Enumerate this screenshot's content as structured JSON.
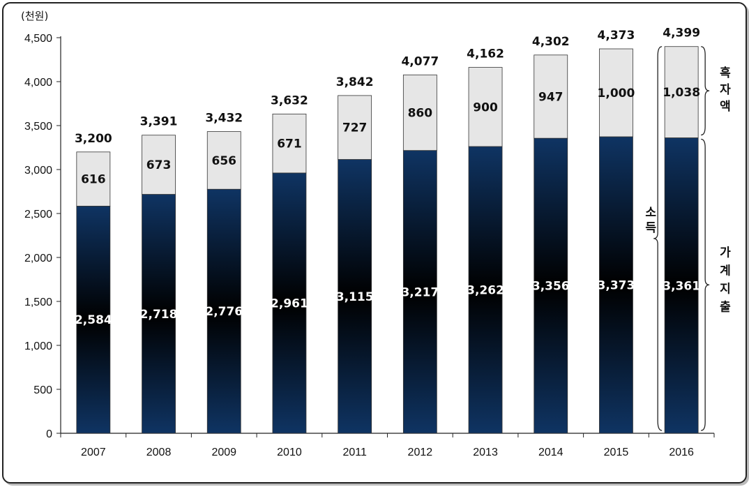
{
  "unit_label": "(천원)",
  "annotations": {
    "surplus": [
      "흑",
      "자",
      "액"
    ],
    "expenditure": [
      "가",
      "계",
      "지",
      "출"
    ],
    "income": [
      "소",
      "득"
    ]
  },
  "colors": {
    "bottom_dark": "#000000",
    "bottom_navy": "#0f3463",
    "top_fill": "#e6e6e6"
  },
  "chart_data": {
    "type": "bar",
    "stacked": true,
    "categories": [
      "2007",
      "2008",
      "2009",
      "2010",
      "2011",
      "2012",
      "2013",
      "2014",
      "2015",
      "2016"
    ],
    "series": [
      {
        "values": [
          2584,
          2718,
          2776,
          2961,
          3115,
          3217,
          3262,
          3356,
          3373,
          3361
        ]
      },
      {
        "values": [
          616,
          673,
          656,
          671,
          727,
          860,
          900,
          947,
          1000,
          1038
        ]
      }
    ],
    "value_labels_bottom": [
      "2,584",
      "2,718",
      "2,776",
      "2,961",
      "3,115",
      "3,217",
      "3,262",
      "3,356",
      "3,373",
      "3,361"
    ],
    "value_labels_top": [
      "616",
      "673",
      "656",
      "671",
      "727",
      "860",
      "900",
      "947",
      "1,000",
      "1,038"
    ],
    "totals": [
      "3,200",
      "3,391",
      "3,432",
      "3,632",
      "3,842",
      "4,077",
      "4,162",
      "4,302",
      "4,373",
      "4,399"
    ],
    "yticks": [
      "0",
      "500",
      "1,000",
      "1,500",
      "2,000",
      "2,500",
      "3,000",
      "3,500",
      "4,000",
      "4,500"
    ],
    "ylim": [
      0,
      4500
    ],
    "grid": false,
    "legend": "none"
  }
}
